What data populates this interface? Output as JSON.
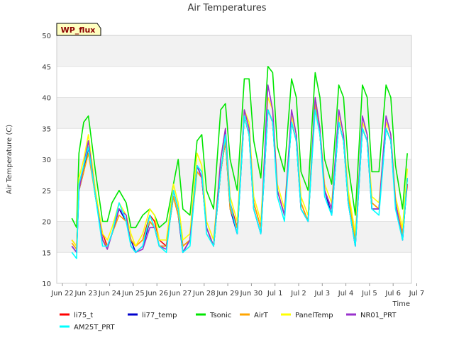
{
  "chart_data": {
    "type": "line",
    "title": "Air Temperatures",
    "xlabel": "Time",
    "ylabel": "Air Temperature (C)",
    "badge": "WP_flux",
    "ylim": [
      10,
      50
    ],
    "yticks": [
      10,
      15,
      20,
      25,
      30,
      35,
      40,
      45,
      50
    ],
    "xlim": [
      0,
      15.5
    ],
    "xticks": [
      {
        "x": 0,
        "label": "Jun 22"
      },
      {
        "x": 1,
        "label": "Jun 23"
      },
      {
        "x": 2,
        "label": "Jun 24"
      },
      {
        "x": 3,
        "label": "Jun 25"
      },
      {
        "x": 4,
        "label": "Jun 26"
      },
      {
        "x": 5,
        "label": "Jun 27"
      },
      {
        "x": 6,
        "label": "Jun 28"
      },
      {
        "x": 7,
        "label": "Jun 29"
      },
      {
        "x": 8,
        "label": "Jun 30"
      },
      {
        "x": 9,
        "label": "Jul 1"
      },
      {
        "x": 10,
        "label": "Jul 2"
      },
      {
        "x": 11,
        "label": "Jul 3"
      },
      {
        "x": 12,
        "label": "Jul 4"
      },
      {
        "x": 13,
        "label": "Jul 5"
      },
      {
        "x": 14,
        "label": "Jul 6"
      },
      {
        "x": 15,
        "label": "Jul 7"
      }
    ],
    "grid": true,
    "legend_position": "bottom",
    "colors": {
      "li75_t": "#ff0000",
      "li77_temp": "#0000cd",
      "Tsonic": "#00e600",
      "AirT": "#ffa500",
      "PanelTemp": "#ffff00",
      "NR01_PRT": "#9932cc",
      "AM25T_PRT": "#00ffff"
    },
    "series": [
      {
        "name": "li75_t",
        "color": "#ff0000",
        "x": [
          0.4,
          0.6,
          0.7,
          0.9,
          1.1,
          1.4,
          1.7,
          1.9,
          2.1,
          2.4,
          2.7,
          2.9,
          3.1,
          3.4,
          3.7,
          3.9,
          4.1,
          4.4,
          4.7,
          4.9,
          5.1,
          5.4,
          5.7,
          5.9,
          6.1,
          6.4,
          6.7,
          6.9,
          7.1,
          7.4,
          7.7,
          7.9,
          8.1,
          8.4,
          8.7,
          8.9,
          9.1,
          9.4,
          9.7,
          9.9,
          10.1,
          10.4,
          10.7,
          10.9,
          11.1,
          11.4,
          11.7,
          11.9,
          12.1,
          12.4,
          12.7,
          12.9,
          13.1,
          13.4,
          13.7,
          13.9,
          14.1,
          14.4,
          14.6
        ],
        "y": [
          17,
          16,
          26,
          28,
          32,
          24,
          18,
          16,
          18,
          22,
          20,
          17,
          16,
          17,
          21,
          20,
          17,
          16,
          25,
          22,
          16,
          17,
          29,
          27,
          19,
          16,
          28,
          33,
          23,
          19,
          37,
          34,
          23,
          19,
          38,
          36,
          25,
          21,
          36,
          33,
          23,
          20,
          39,
          34,
          25,
          22,
          36,
          33,
          24,
          17,
          35,
          33,
          23,
          22,
          35,
          33,
          23,
          18,
          26
        ]
      },
      {
        "name": "li77_temp",
        "color": "#0000cd",
        "x": [
          0.4,
          0.6,
          0.7,
          0.9,
          1.1,
          1.4,
          1.7,
          1.9,
          2.1,
          2.4,
          2.7,
          2.9,
          3.1,
          3.4,
          3.7,
          3.9,
          4.1,
          4.4,
          4.7,
          4.9,
          5.1,
          5.4,
          5.7,
          5.9,
          6.1,
          6.4,
          6.7,
          6.9,
          7.1,
          7.4,
          7.7,
          7.9,
          8.1,
          8.4,
          8.7,
          8.9,
          9.1,
          9.4,
          9.7,
          9.9,
          10.1,
          10.4,
          10.7,
          10.9,
          11.1,
          11.4,
          11.7,
          11.9,
          12.1,
          12.4,
          12.7,
          12.9,
          13.1,
          13.4,
          13.7,
          13.9,
          14.1,
          14.4,
          14.6
        ],
        "y": [
          16,
          15,
          25,
          28,
          32,
          24,
          17,
          16,
          18,
          22,
          20,
          17,
          15,
          16,
          20,
          19,
          16,
          16,
          24,
          21,
          15,
          17,
          29,
          27,
          19,
          16,
          28,
          33,
          22,
          18,
          37,
          34,
          22,
          18,
          38,
          36,
          25,
          21,
          36,
          33,
          22,
          20,
          39,
          34,
          25,
          21,
          36,
          33,
          23,
          16,
          35,
          33,
          22,
          22,
          35,
          33,
          23,
          17,
          27
        ]
      },
      {
        "name": "Tsonic",
        "color": "#00e600",
        "x": [
          0.4,
          0.6,
          0.7,
          0.9,
          1.1,
          1.4,
          1.7,
          1.9,
          2.1,
          2.4,
          2.7,
          2.9,
          3.1,
          3.4,
          3.7,
          3.9,
          4.1,
          4.4,
          4.7,
          4.9,
          5.1,
          5.4,
          5.7,
          5.9,
          6.1,
          6.4,
          6.7,
          6.9,
          7.1,
          7.4,
          7.7,
          7.9,
          8.1,
          8.4,
          8.7,
          8.9,
          9.1,
          9.4,
          9.7,
          9.9,
          10.1,
          10.4,
          10.7,
          10.9,
          11.1,
          11.4,
          11.7,
          11.9,
          12.1,
          12.4,
          12.7,
          12.9,
          13.1,
          13.4,
          13.7,
          13.9,
          14.1,
          14.4,
          14.6
        ],
        "y": [
          20.5,
          19,
          31,
          36,
          37,
          28,
          20,
          20,
          23,
          25,
          23,
          19,
          19,
          21,
          22,
          21,
          19,
          20,
          26,
          30,
          22,
          21,
          33,
          34,
          25,
          22,
          38,
          39,
          30,
          25,
          43,
          43,
          33,
          27,
          45,
          44,
          32,
          28,
          43,
          40,
          28,
          25,
          44,
          40,
          30,
          26,
          42,
          40,
          29,
          21,
          42,
          40,
          28,
          28,
          42,
          40,
          29,
          22,
          31
        ]
      },
      {
        "name": "AirT",
        "color": "#ffa500",
        "x": [
          0.4,
          0.6,
          0.7,
          0.9,
          1.1,
          1.4,
          1.7,
          1.9,
          2.1,
          2.4,
          2.7,
          2.9,
          3.1,
          3.4,
          3.7,
          3.9,
          4.1,
          4.4,
          4.7,
          4.9,
          5.1,
          5.4,
          5.7,
          5.9,
          6.1,
          6.4,
          6.7,
          6.9,
          7.1,
          7.4,
          7.7,
          7.9,
          8.1,
          8.4,
          8.7,
          8.9,
          9.1,
          9.4,
          9.7,
          9.9,
          10.1,
          10.4,
          10.7,
          10.9,
          11.1,
          11.4,
          11.7,
          11.9,
          12.1,
          12.4,
          12.7,
          12.9,
          13.1,
          13.4,
          13.7,
          13.9,
          14.1,
          14.4,
          14.6
        ],
        "y": [
          16.5,
          15.5,
          25,
          28,
          31,
          24,
          17,
          16,
          18,
          21,
          20,
          17,
          16,
          17,
          20,
          19,
          16,
          16,
          24,
          21,
          16,
          17,
          28,
          27,
          19,
          16,
          28,
          33,
          22,
          19,
          37,
          34,
          23,
          19,
          38,
          36,
          25,
          21,
          36,
          33,
          23,
          20,
          39,
          34,
          25,
          22,
          36,
          33,
          24,
          17,
          35,
          33,
          23,
          22,
          35,
          33,
          23,
          18,
          27
        ]
      },
      {
        "name": "PanelTemp",
        "color": "#ffff00",
        "x": [
          0.4,
          0.6,
          0.7,
          0.9,
          1.1,
          1.4,
          1.7,
          1.9,
          2.1,
          2.4,
          2.7,
          2.9,
          3.1,
          3.4,
          3.7,
          3.9,
          4.1,
          4.4,
          4.7,
          4.9,
          5.1,
          5.4,
          5.7,
          5.9,
          6.1,
          6.4,
          6.7,
          6.9,
          7.1,
          7.4,
          7.7,
          7.9,
          8.1,
          8.4,
          8.7,
          8.9,
          9.1,
          9.4,
          9.7,
          9.9,
          10.1,
          10.4,
          10.7,
          10.9,
          11.1,
          11.4,
          11.7,
          11.9,
          12.1,
          12.4,
          12.7,
          12.9,
          13.1,
          13.4,
          13.7,
          13.9,
          14.1,
          14.4,
          14.6
        ],
        "y": [
          17,
          16,
          27,
          30,
          34,
          25,
          18,
          17,
          19,
          23,
          21,
          18,
          16,
          18,
          22,
          21,
          17,
          17,
          26,
          23,
          17,
          18,
          31,
          29,
          20,
          17,
          30,
          35,
          24,
          20,
          38,
          36,
          24,
          20,
          40,
          38,
          26,
          22,
          37,
          34,
          24,
          21,
          40,
          35,
          26,
          23,
          37,
          34,
          25,
          18,
          36,
          34,
          24,
          23,
          36,
          34,
          24,
          19,
          28.5
        ]
      },
      {
        "name": "NR01_PRT",
        "color": "#9932cc",
        "x": [
          0.4,
          0.6,
          0.7,
          0.9,
          1.1,
          1.4,
          1.7,
          1.9,
          2.1,
          2.4,
          2.7,
          2.9,
          3.1,
          3.4,
          3.7,
          3.9,
          4.1,
          4.4,
          4.7,
          4.9,
          5.1,
          5.4,
          5.7,
          5.9,
          6.1,
          6.4,
          6.7,
          6.9,
          7.1,
          7.4,
          7.7,
          7.9,
          8.1,
          8.4,
          8.7,
          8.9,
          9.1,
          9.4,
          9.7,
          9.9,
          10.1,
          10.4,
          10.7,
          10.9,
          11.1,
          11.4,
          11.7,
          11.9,
          12.1,
          12.4,
          12.7,
          12.9,
          13.1,
          13.4,
          13.7,
          13.9,
          14.1,
          14.4,
          14.6
        ],
        "y": [
          16,
          15,
          25,
          29,
          33,
          24,
          17,
          15.5,
          18,
          22,
          21,
          16,
          15,
          15.5,
          19,
          19,
          16,
          15.5,
          25,
          22,
          15,
          17,
          29,
          27,
          19,
          16,
          30,
          35,
          23,
          18,
          38,
          35,
          22,
          18,
          42,
          38,
          25,
          21,
          38,
          34,
          22,
          20,
          40,
          35,
          25,
          22,
          38,
          34,
          23,
          16,
          37,
          34,
          22,
          22,
          37,
          34,
          23,
          17,
          27
        ]
      },
      {
        "name": "AM25T_PRT",
        "color": "#00ffff",
        "x": [
          0.4,
          0.6,
          0.7,
          0.9,
          1.1,
          1.4,
          1.7,
          1.9,
          2.1,
          2.4,
          2.7,
          2.9,
          3.1,
          3.4,
          3.7,
          3.9,
          4.1,
          4.4,
          4.7,
          4.9,
          5.1,
          5.4,
          5.7,
          5.9,
          6.1,
          6.4,
          6.7,
          6.9,
          7.1,
          7.4,
          7.7,
          7.9,
          8.1,
          8.4,
          8.7,
          8.9,
          9.1,
          9.4,
          9.7,
          9.9,
          10.1,
          10.4,
          10.7,
          10.9,
          11.1,
          11.4,
          11.7,
          11.9,
          12.1,
          12.4,
          12.7,
          12.9,
          13.1,
          13.4,
          13.7,
          13.9,
          14.1,
          14.4,
          14.6
        ],
        "y": [
          15,
          14,
          26,
          29,
          32,
          24,
          16,
          16,
          18,
          23,
          20,
          16,
          15,
          16,
          21,
          19,
          16,
          15,
          25,
          22,
          15,
          16,
          29,
          28,
          18,
          16,
          28,
          34,
          23,
          18,
          37,
          34,
          22,
          18,
          38,
          36,
          24,
          20,
          36,
          33,
          22,
          20,
          38,
          34,
          24,
          21,
          36,
          33,
          23,
          16,
          35,
          33,
          22,
          21,
          35,
          33,
          22,
          17,
          27
        ]
      }
    ]
  }
}
